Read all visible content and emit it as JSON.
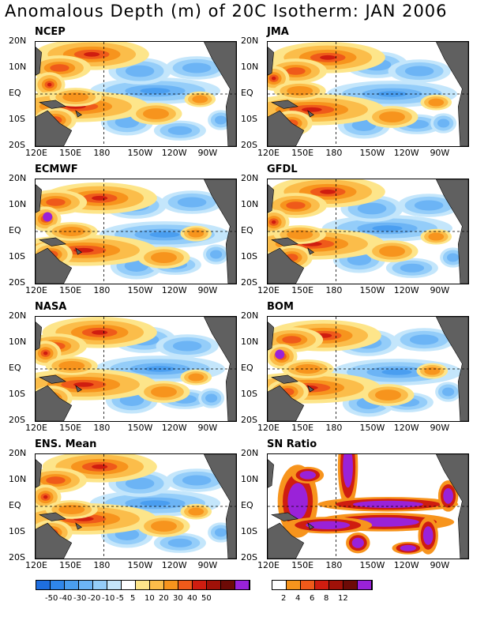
{
  "title": "Anomalous Depth (m) of 20C Isotherm: JAN 2006",
  "panels": [
    {
      "id": "ncep",
      "name": "NCEP"
    },
    {
      "id": "jma",
      "name": "JMA"
    },
    {
      "id": "ecmwf",
      "name": "ECMWF"
    },
    {
      "id": "gfdl",
      "name": "GFDL"
    },
    {
      "id": "nasa",
      "name": "NASA"
    },
    {
      "id": "bom",
      "name": "BOM"
    },
    {
      "id": "ens",
      "name": "ENS. Mean"
    },
    {
      "id": "sn",
      "name": "SN Ratio"
    }
  ],
  "lat_labels": [
    "20N",
    "10N",
    "EQ",
    "10S",
    "20S"
  ],
  "lon_labels": [
    "120E",
    "150E",
    "180",
    "150W",
    "120W",
    "90W"
  ],
  "colorbar_anomaly": {
    "labels": [
      "-50",
      "-40",
      "-30",
      "-20",
      "-10",
      "-5",
      "5",
      "10",
      "20",
      "30",
      "40",
      "50"
    ],
    "colors": [
      "#1e6ee0",
      "#2f86ea",
      "#4a9ef0",
      "#6cb4f5",
      "#94cdf9",
      "#c4e6fb",
      "#ffffff",
      "#fde58a",
      "#fbbd4a",
      "#f7941d",
      "#ef5a1a",
      "#cf1d10",
      "#a01108",
      "#6d0a06",
      "#9a22d8"
    ]
  },
  "colorbar_sn": {
    "labels": [
      "2",
      "4",
      "6",
      "8",
      "12"
    ],
    "colors": [
      "#ffffff",
      "#f7941d",
      "#ef5a1a",
      "#cf1d10",
      "#a01108",
      "#6d0a06",
      "#9a22d8"
    ]
  },
  "land_color": "#606060"
}
